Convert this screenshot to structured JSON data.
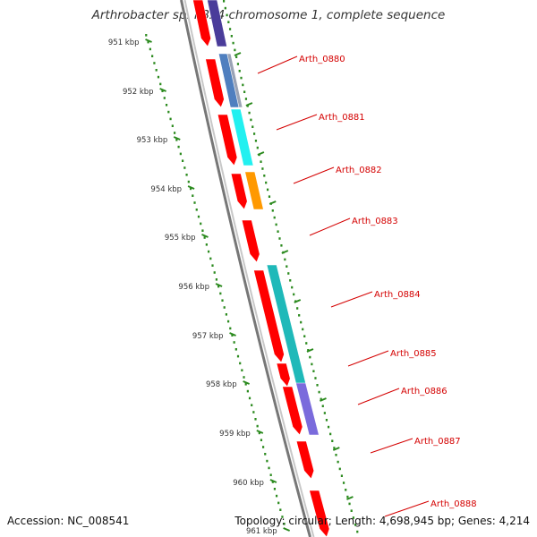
{
  "header": {
    "title": "Arthrobacter sp. FB24 chromosome 1, complete sequence"
  },
  "footer": {
    "accession": "Accession: NC_008541",
    "summary": "Topology: circular; Length: 4,698,945 bp; Genes: 4,214"
  },
  "map": {
    "scale_labels": [
      "951 kbp",
      "952 kbp",
      "953 kbp",
      "954 kbp",
      "955 kbp",
      "956 kbp",
      "957 kbp",
      "958 kbp",
      "959 kbp",
      "960 kbp",
      "961 kbp"
    ],
    "gene_labels": [
      "Arth_0880",
      "Arth_0881",
      "Arth_0882",
      "Arth_0883",
      "Arth_0884",
      "Arth_0885",
      "Arth_0886",
      "Arth_0887",
      "Arth_0888"
    ],
    "colors": {
      "backbone": "#8a8a8a",
      "cds": "#ff0000",
      "tick": "#2b8a1e",
      "label": "#d40000",
      "cog_purple_dark": "#4a3c9a",
      "cog_steelblue": "#4f7fbf",
      "cog_cyan": "#22f0f0",
      "cog_orange": "#ff9900",
      "cog_teal": "#1fb9b9",
      "cog_slateblue": "#7a6bdc"
    }
  }
}
